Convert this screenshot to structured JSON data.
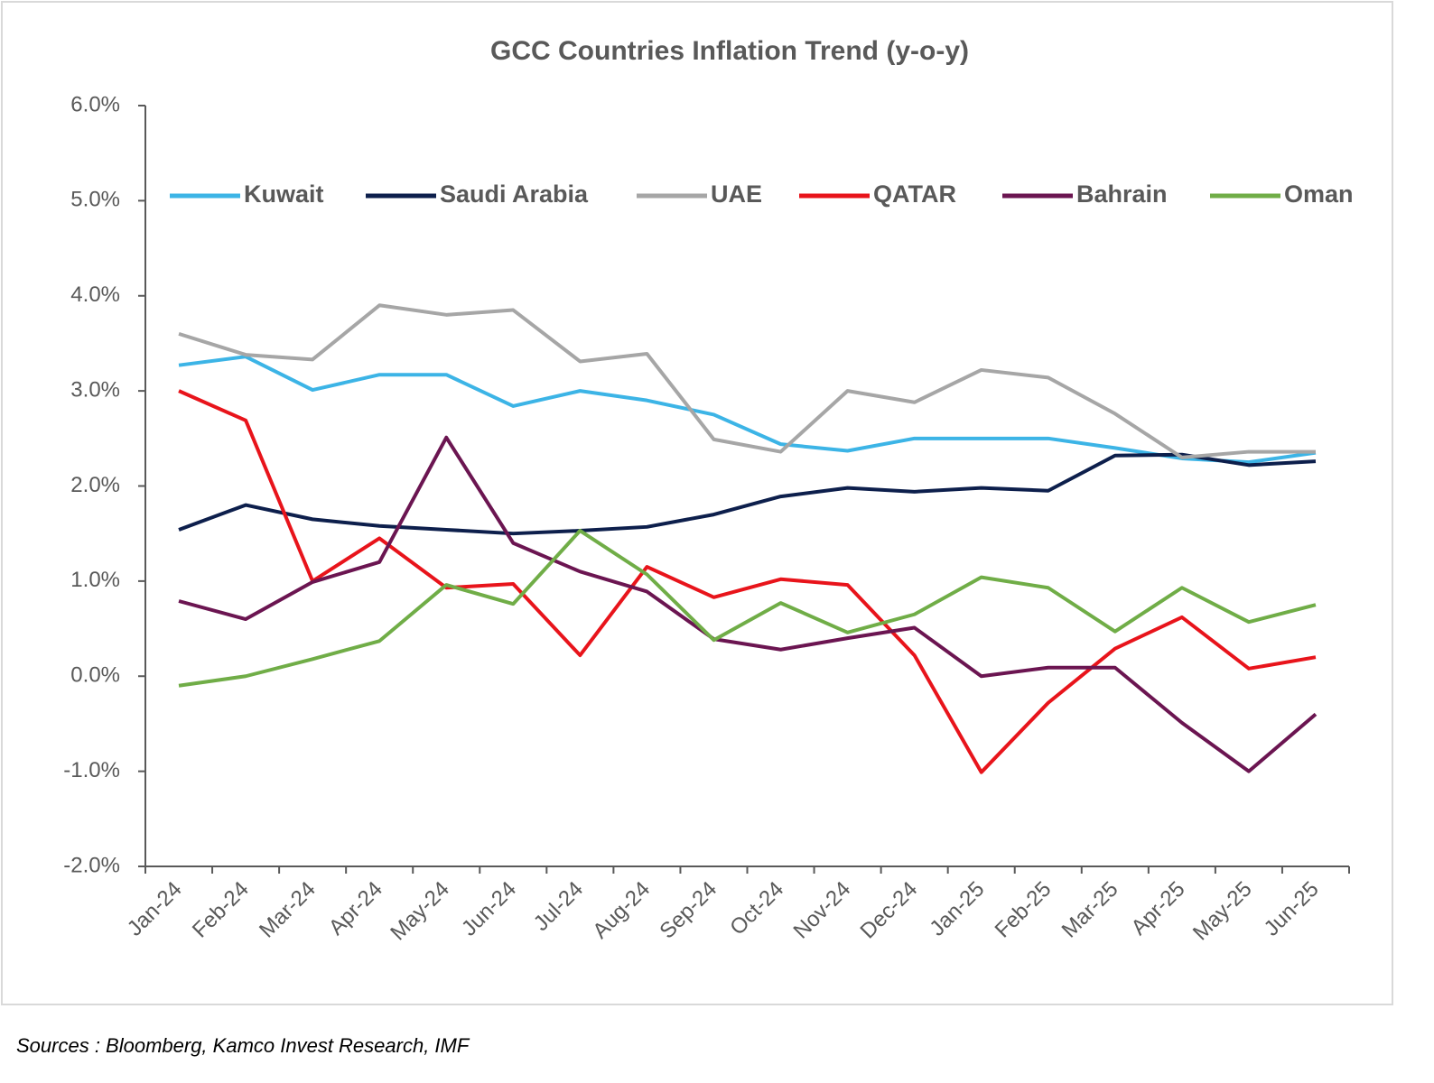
{
  "chart_data": {
    "type": "line",
    "title": "GCC Countries Inflation Trend (y-o-y)",
    "categories": [
      "Jan-24",
      "Feb-24",
      "Mar-24",
      "Apr-24",
      "May-24",
      "Jun-24",
      "Jul-24",
      "Aug-24",
      "Sep-24",
      "Oct-24",
      "Nov-24",
      "Dec-24",
      "Jan-25",
      "Feb-25",
      "Mar-25",
      "Apr-25",
      "May-25",
      "Jun-25"
    ],
    "series": [
      {
        "name": "Kuwait",
        "color": "#3cb4e6",
        "values": [
          3.27,
          3.36,
          3.01,
          3.17,
          3.17,
          2.84,
          3.0,
          2.9,
          2.75,
          2.44,
          2.37,
          2.5,
          2.5,
          2.5,
          2.4,
          2.29,
          2.25,
          2.35
        ]
      },
      {
        "name": "Saudi Arabia",
        "color": "#0d1f4c",
        "values": [
          1.54,
          1.8,
          1.65,
          1.58,
          1.54,
          1.5,
          1.53,
          1.57,
          1.7,
          1.89,
          1.98,
          1.94,
          1.98,
          1.95,
          2.32,
          2.33,
          2.22,
          2.26
        ]
      },
      {
        "name": "UAE",
        "color": "#a6a6a6",
        "values": [
          3.6,
          3.38,
          3.33,
          3.9,
          3.8,
          3.85,
          3.31,
          3.39,
          2.49,
          2.36,
          3.0,
          2.88,
          3.22,
          3.14,
          2.76,
          2.3,
          2.36,
          2.36
        ]
      },
      {
        "name": "QATAR",
        "color": "#e8141b",
        "values": [
          3.0,
          2.69,
          1.0,
          1.45,
          0.93,
          0.97,
          0.22,
          1.15,
          0.83,
          1.02,
          0.96,
          0.22,
          -1.01,
          -0.28,
          0.29,
          0.62,
          0.08,
          0.2
        ]
      },
      {
        "name": "Bahrain",
        "color": "#6b1551",
        "values": [
          0.79,
          0.6,
          0.99,
          1.2,
          2.51,
          1.4,
          1.1,
          0.89,
          0.39,
          0.28,
          0.4,
          0.51,
          0.0,
          0.09,
          0.09,
          -0.49,
          -1.0,
          -0.4
        ]
      },
      {
        "name": "Oman",
        "color": "#70ad47",
        "values": [
          -0.1,
          0.0,
          0.18,
          0.37,
          0.96,
          0.76,
          1.53,
          1.07,
          0.38,
          0.77,
          0.46,
          0.65,
          1.04,
          0.93,
          0.47,
          0.93,
          0.57,
          0.75
        ]
      }
    ],
    "ylim": [
      -2,
      6
    ],
    "yticks": [
      {
        "value": -2,
        "label": "-2.0%"
      },
      {
        "value": -1,
        "label": "-1.0%"
      },
      {
        "value": 0,
        "label": "0.0%"
      },
      {
        "value": 1,
        "label": "1.0%"
      },
      {
        "value": 2,
        "label": "2.0%"
      },
      {
        "value": 3,
        "label": "3.0%"
      },
      {
        "value": 4,
        "label": "4.0%"
      },
      {
        "value": 5,
        "label": "5.0%"
      },
      {
        "value": 6,
        "label": "6.0%"
      }
    ],
    "legend": "top",
    "source": "Sources : Bloomberg, Kamco Invest Research, IMF"
  }
}
